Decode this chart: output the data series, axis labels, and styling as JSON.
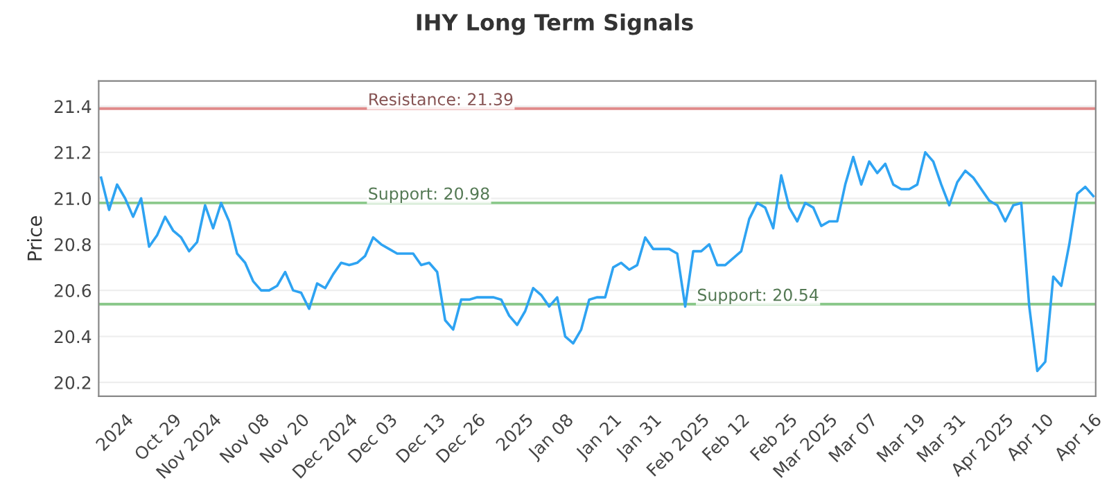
{
  "chart_data": {
    "type": "line",
    "title": "IHY Long Term Signals",
    "ylabel": "Price",
    "categories": [
      null,
      null,
      null,
      "2024",
      null,
      null,
      null,
      null,
      null,
      "Oct 29",
      null,
      null,
      null,
      null,
      "Nov 2024",
      null,
      null,
      null,
      null,
      null,
      "Nov 08",
      null,
      null,
      null,
      null,
      "Nov 20",
      null,
      null,
      null,
      null,
      null,
      "Dec 2024",
      null,
      null,
      null,
      null,
      "Dec 03",
      null,
      null,
      null,
      null,
      null,
      "Dec 13",
      null,
      null,
      null,
      null,
      "Dec 26",
      null,
      null,
      null,
      null,
      null,
      "2025",
      null,
      null,
      null,
      null,
      "Jan 08",
      null,
      null,
      null,
      null,
      null,
      "Jan 21",
      null,
      null,
      null,
      null,
      "Jan 31",
      null,
      null,
      null,
      null,
      null,
      "Feb 2025",
      null,
      null,
      null,
      null,
      "Feb 12",
      null,
      null,
      null,
      null,
      null,
      "Feb 25",
      null,
      null,
      null,
      null,
      "Mar 2025",
      null,
      null,
      null,
      null,
      "Mar 07",
      null,
      null,
      null,
      null,
      null,
      "Mar 19",
      null,
      null,
      null,
      null,
      "Mar 31",
      null,
      null,
      null,
      null,
      null,
      "Apr 2025",
      null,
      null,
      null,
      null,
      "Apr 10",
      null,
      null,
      null,
      null,
      null,
      "Apr 16"
    ],
    "series": [
      {
        "color": "#2ea3f2",
        "values": [
          21.09,
          20.95,
          21.06,
          21.0,
          20.92,
          21.0,
          20.79,
          20.84,
          20.92,
          20.86,
          20.83,
          20.77,
          20.81,
          20.97,
          20.87,
          20.98,
          20.9,
          20.76,
          20.72,
          20.64,
          20.6,
          20.6,
          20.62,
          20.68,
          20.6,
          20.59,
          20.52,
          20.63,
          20.61,
          20.67,
          20.72,
          20.71,
          20.72,
          20.75,
          20.83,
          20.8,
          20.78,
          20.76,
          20.76,
          20.76,
          20.71,
          20.72,
          20.68,
          20.47,
          20.43,
          20.56,
          20.56,
          20.57,
          20.57,
          20.57,
          20.56,
          20.49,
          20.45,
          20.51,
          20.61,
          20.58,
          20.53,
          20.57,
          20.4,
          20.37,
          20.43,
          20.56,
          20.57,
          20.57,
          20.7,
          20.72,
          20.69,
          20.71,
          20.83,
          20.78,
          20.78,
          20.78,
          20.76,
          20.53,
          20.77,
          20.77,
          20.8,
          20.71,
          20.71,
          20.74,
          20.77,
          20.91,
          20.98,
          20.96,
          20.87,
          21.1,
          20.96,
          20.9,
          20.98,
          20.96,
          20.88,
          20.9,
          20.9,
          21.06,
          21.18,
          21.06,
          21.16,
          21.11,
          21.15,
          21.06,
          21.04,
          21.04,
          21.06,
          21.2,
          21.16,
          21.06,
          20.97,
          21.07,
          21.12,
          21.09,
          21.04,
          20.99,
          20.97,
          20.9,
          20.97,
          20.98,
          20.53,
          20.25,
          20.29,
          20.66,
          20.62,
          20.8,
          21.02,
          21.05,
          21.01
        ]
      }
    ],
    "ylim": [
      20.14,
      21.51
    ],
    "yticks": [
      {
        "value": 20.2,
        "label": "20.2"
      },
      {
        "value": 20.4,
        "label": "20.4"
      },
      {
        "value": 20.6,
        "label": "20.6"
      },
      {
        "value": 20.8,
        "label": "20.8"
      },
      {
        "value": 21.0,
        "label": "21.0"
      },
      {
        "value": 21.2,
        "label": "21.2"
      },
      {
        "value": 21.4,
        "label": "21.4"
      }
    ],
    "grid": "y",
    "legend": false,
    "marker": "none",
    "line_style": "solid",
    "ref_lines": [
      {
        "axis": "y",
        "value": 21.39,
        "label": "Resistance: 21.39",
        "color": "#e08a8a"
      },
      {
        "axis": "y",
        "value": 20.98,
        "label": "Support: 20.98",
        "color": "#8cc98c"
      },
      {
        "axis": "y",
        "value": 20.54,
        "label": "Support: 20.54",
        "color": "#8cc98c"
      }
    ]
  }
}
